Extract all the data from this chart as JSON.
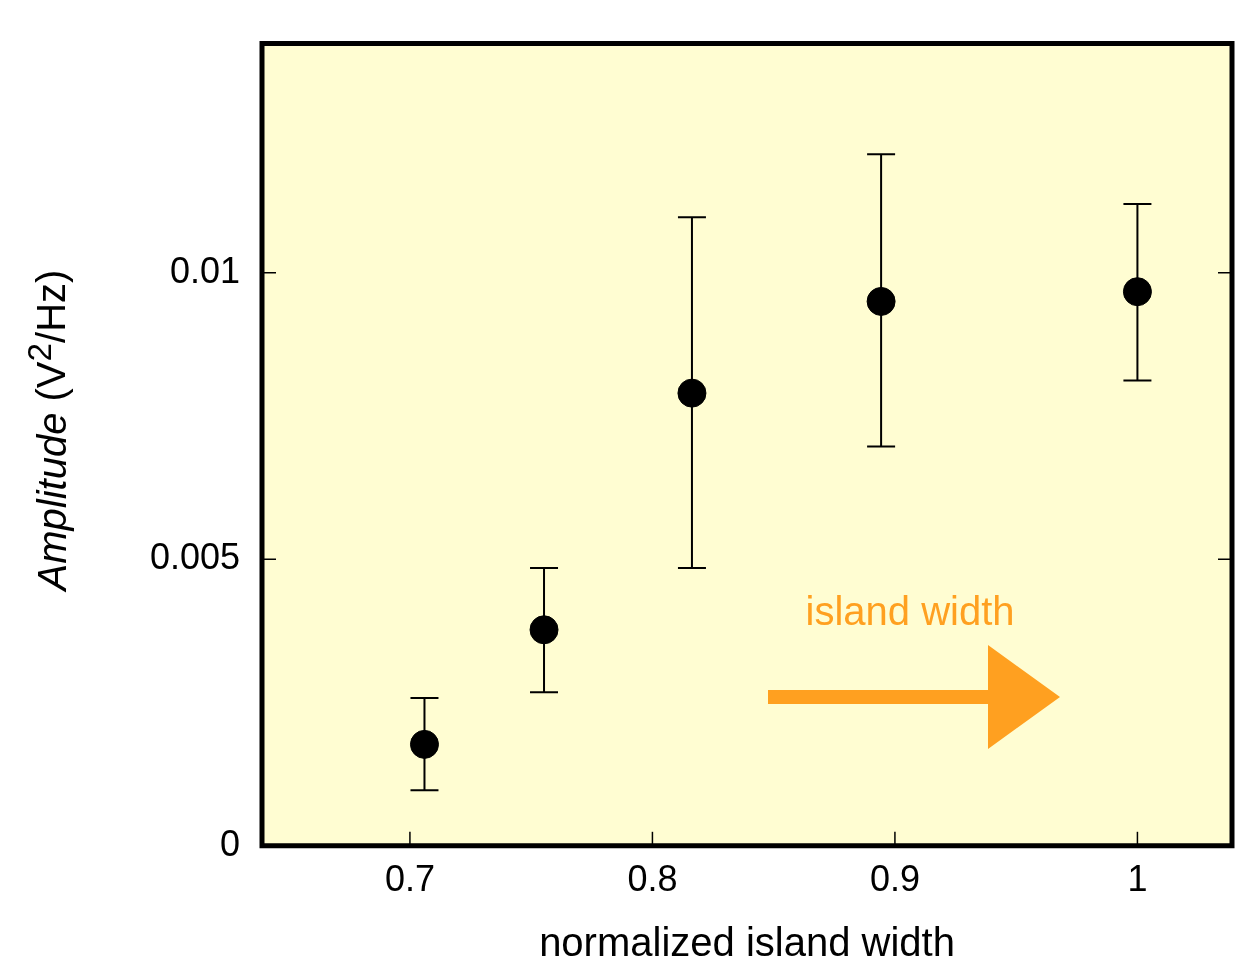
{
  "chart_data": {
    "type": "scatter",
    "xlabel": "normalized island width",
    "ylabel": "Amplitude (V$^{2}$/Hz)",
    "x": [
      0.706,
      0.7553,
      0.8163,
      0.8943,
      1.0
    ],
    "values": [
      0.00177,
      0.00377,
      0.0079,
      0.0095,
      0.00967
    ],
    "errors": [
      [
        0.00097,
        0.00258
      ],
      [
        0.00268,
        0.00485
      ],
      [
        0.00485,
        0.01097
      ],
      [
        0.00697,
        0.01207
      ],
      [
        0.00812,
        0.0112
      ]
    ],
    "color": "#000000",
    "marker": "circle",
    "xlim": [
      0.639,
      1.039
    ],
    "xticks": [
      0.7,
      0.8,
      0.9,
      1
    ],
    "ylim": [
      0,
      0.014
    ],
    "yticks": [
      0,
      0.005,
      0.01
    ],
    "annotations": [
      "island width"
    ]
  }
}
